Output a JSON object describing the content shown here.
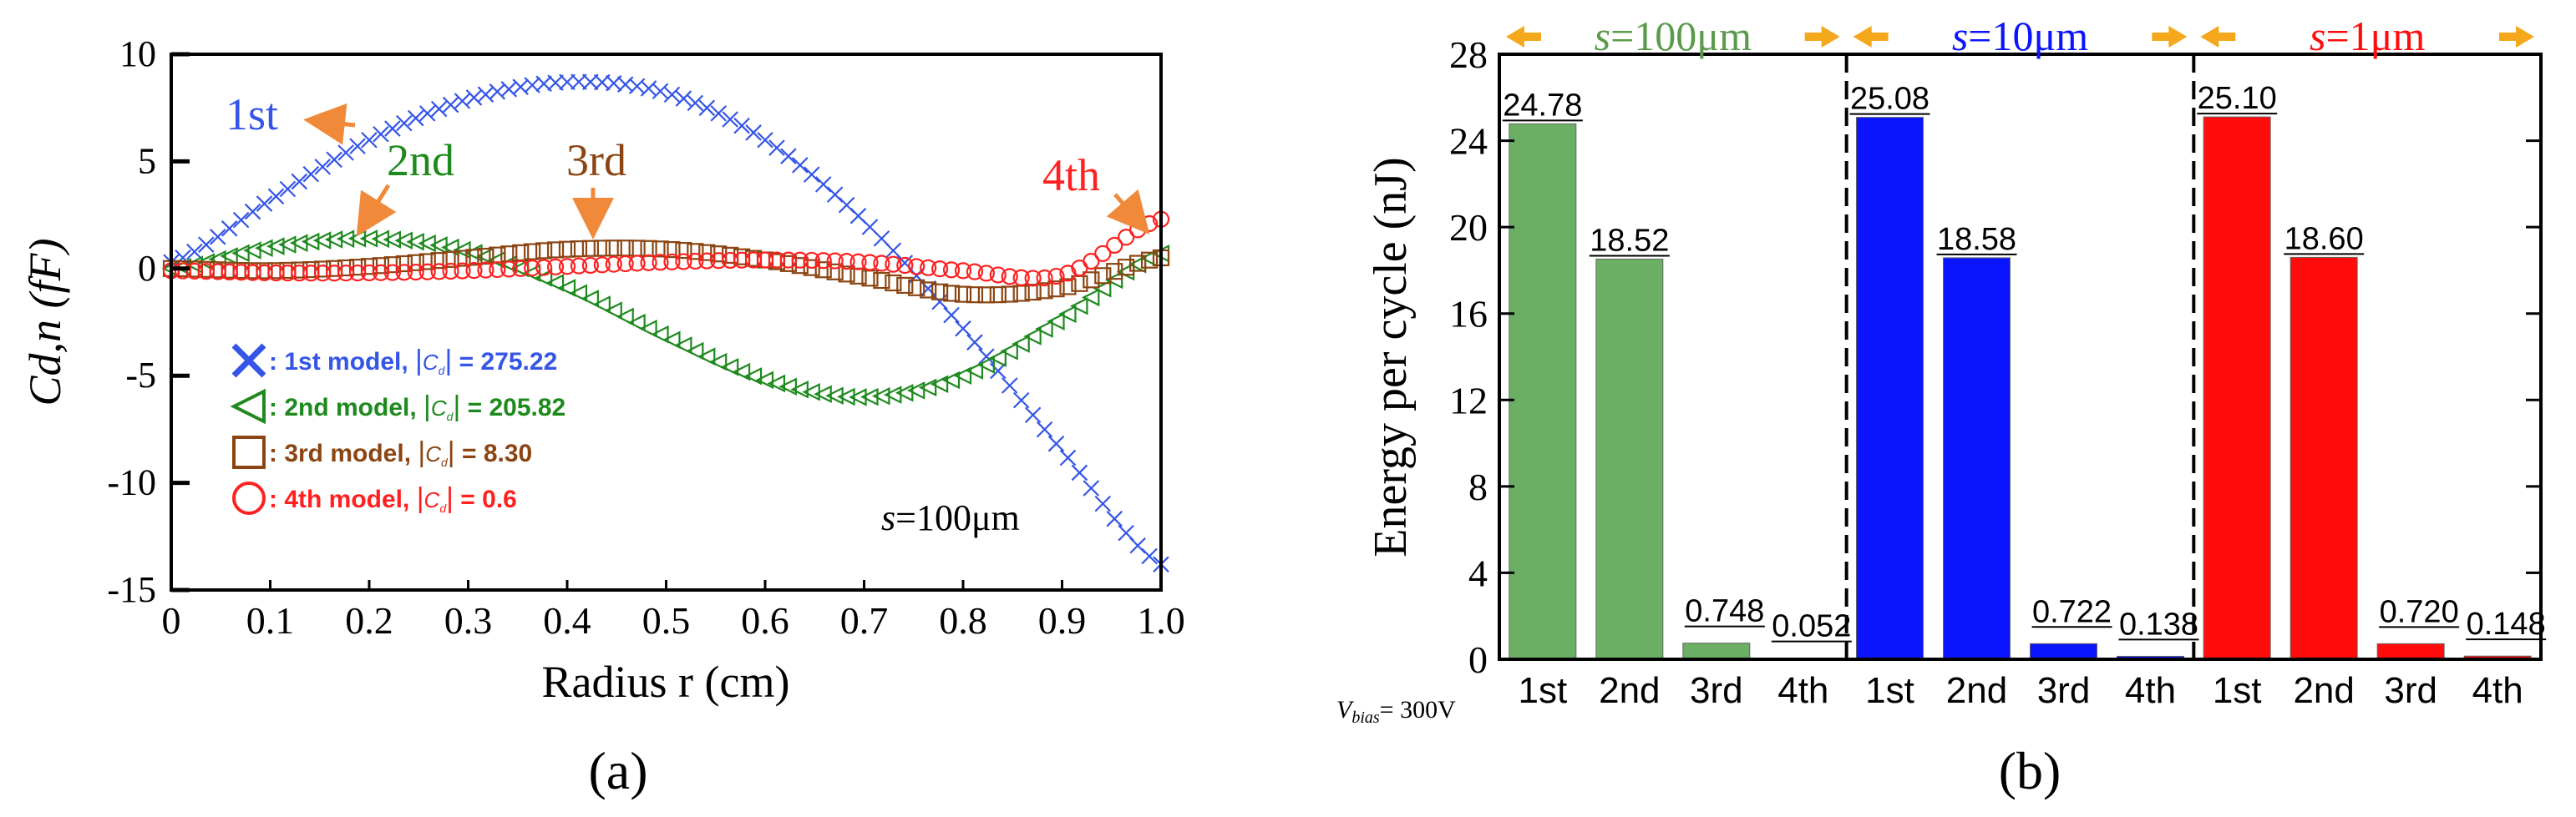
{
  "chart_data": [
    {
      "panel": "(a)",
      "type": "scatter",
      "xlabel": "Radius r (cm)",
      "ylabel": "Cd,n (fF)",
      "xlim": [
        0,
        1.0
      ],
      "ylim": [
        -15,
        10
      ],
      "x_ticks": [
        "0",
        "0.1",
        "0.2",
        "0.3",
        "0.4",
        "0.5",
        "0.6",
        "0.7",
        "0.8",
        "0.9",
        "1.0"
      ],
      "y_ticks": [
        "10",
        "5",
        "0",
        "-5",
        "-10",
        "-15"
      ],
      "annotation": "s=100μm",
      "series": [
        {
          "name": "1st",
          "label": "1st",
          "legend": "1st model,",
          "legend_value": "= 275.22",
          "marker": "x",
          "color": "#3455e8",
          "x": [
            0,
            0.1,
            0.2,
            0.3,
            0.4,
            0.5,
            0.6,
            0.7,
            0.8,
            0.9,
            1.0
          ],
          "y": [
            0.3,
            3.2,
            6.0,
            7.9,
            8.7,
            8.2,
            6.0,
            2.2,
            -2.8,
            -8.5,
            -13.8
          ]
        },
        {
          "name": "2nd",
          "label": "2nd",
          "legend": "2nd model,",
          "legend_value": "= 205.82",
          "marker": "triangle",
          "color": "#1e8a1e",
          "x": [
            0,
            0.1,
            0.2,
            0.3,
            0.4,
            0.5,
            0.6,
            0.7,
            0.8,
            0.9,
            1.0
          ],
          "y": [
            0.0,
            1.0,
            1.4,
            0.8,
            -0.9,
            -3.2,
            -5.2,
            -6.0,
            -5.0,
            -2.3,
            0.7
          ]
        },
        {
          "name": "3rd",
          "label": "3rd",
          "legend": "3rd model,",
          "legend_value": "= 8.30",
          "marker": "square",
          "color": "#8b4513",
          "x": [
            0,
            0.1,
            0.2,
            0.3,
            0.4,
            0.5,
            0.6,
            0.7,
            0.8,
            0.9,
            1.0
          ],
          "y": [
            0.0,
            -0.1,
            0.1,
            0.5,
            0.9,
            0.9,
            0.4,
            -0.4,
            -1.2,
            -0.9,
            0.5
          ]
        },
        {
          "name": "4th",
          "label": "4th",
          "legend": "4th model,",
          "legend_value": "= 0.6",
          "marker": "circle",
          "color": "#ff2020",
          "x": [
            0,
            0.1,
            0.2,
            0.3,
            0.4,
            0.5,
            0.6,
            0.7,
            0.8,
            0.9,
            1.0
          ],
          "y": [
            -0.1,
            -0.2,
            -0.2,
            -0.1,
            0.1,
            0.3,
            0.4,
            0.3,
            -0.1,
            -0.3,
            2.3
          ]
        }
      ]
    },
    {
      "panel": "(b)",
      "type": "bar",
      "ylabel": "Energy per cycle (nJ)",
      "ylim": [
        0,
        28
      ],
      "y_ticks": [
        "28",
        "24",
        "20",
        "16",
        "12",
        "8",
        "4",
        "0"
      ],
      "bias_note": "= 300V",
      "bias_symbol": "Vbias",
      "groups": [
        {
          "name": "s=100μm",
          "s_label": "s",
          "s_value": "=100μm",
          "color": "#6aaf63",
          "header_color": "#5a9a4a",
          "categories": [
            "1st",
            "2nd",
            "3rd",
            "4th"
          ],
          "values": [
            24.78,
            18.52,
            0.748,
            0.052
          ],
          "labels": [
            "24.78",
            "18.52",
            "0.748",
            "0.052"
          ]
        },
        {
          "name": "s=10μm",
          "s_label": "s",
          "s_value": "=10μm",
          "color": "#0a14ff",
          "header_color": "#0a14ff",
          "categories": [
            "1st",
            "2nd",
            "3rd",
            "4th"
          ],
          "values": [
            25.08,
            18.58,
            0.722,
            0.138
          ],
          "labels": [
            "25.08",
            "18.58",
            "0.722",
            "0.138"
          ]
        },
        {
          "name": "s=1μm",
          "s_label": "s",
          "s_value": "=1μm",
          "color": "#ff0d0d",
          "header_color": "#ff0d0d",
          "categories": [
            "1st",
            "2nd",
            "3rd",
            "4th"
          ],
          "values": [
            25.1,
            18.6,
            0.72,
            0.148
          ],
          "labels": [
            "25.10",
            "18.60",
            "0.720",
            "0.148"
          ]
        }
      ]
    }
  ],
  "colors": {
    "arrow": "#f08a3a",
    "header_arrow": "#f5a81c",
    "axis": "#000000"
  }
}
